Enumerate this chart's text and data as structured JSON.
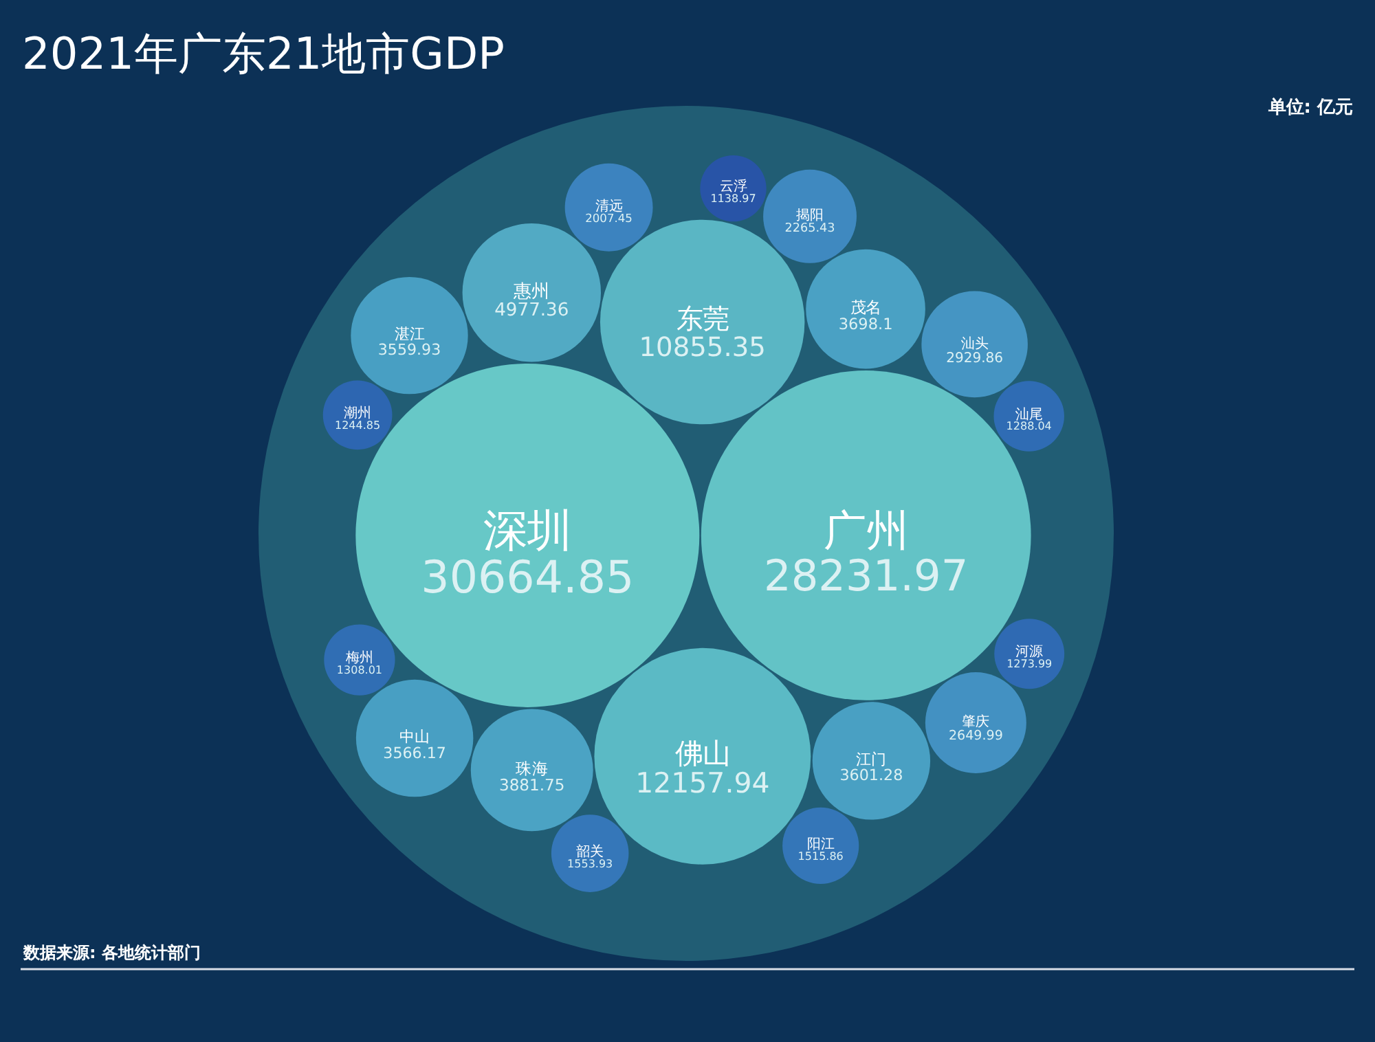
{
  "chart_data": {
    "type": "other",
    "title": "2021年广东21地市GDP",
    "categories": [
      "深圳",
      "广州",
      "佛山",
      "东莞",
      "惠州",
      "珠海",
      "茂名",
      "江门",
      "中山",
      "湛江",
      "汕头",
      "肇庆",
      "揭阳",
      "清远",
      "韶关",
      "阳江",
      "梅州",
      "汕尾",
      "河源",
      "潮州",
      "云浮"
    ],
    "values": [
      30664.85,
      28231.97,
      12157.94,
      10855.35,
      4977.36,
      3881.75,
      3698.1,
      3601.28,
      3566.17,
      3559.93,
      2929.86,
      2649.99,
      2265.43,
      2007.45,
      1553.93,
      1515.86,
      1308.01,
      1288.04,
      1273.99,
      1244.85,
      1138.97
    ],
    "colors": [
      "#67c8c7",
      "#63c3c6",
      "#5bbac5",
      "#5ab6c4",
      "#52aac4",
      "#4ba3c4",
      "#4aa1c4",
      "#49a0c3",
      "#489fc3",
      "#489fc3",
      "#4595c3",
      "#4391c2",
      "#3f89c0",
      "#3c83bf",
      "#3577b9",
      "#3476b8",
      "#306eb4",
      "#2f6cb4",
      "#2f6ab3",
      "#2d66b1",
      "#2854a7"
    ],
    "data_labels": true,
    "annotations": [
      "单位: 亿元",
      "数据来源: 各地统计部门"
    ]
  }
}
